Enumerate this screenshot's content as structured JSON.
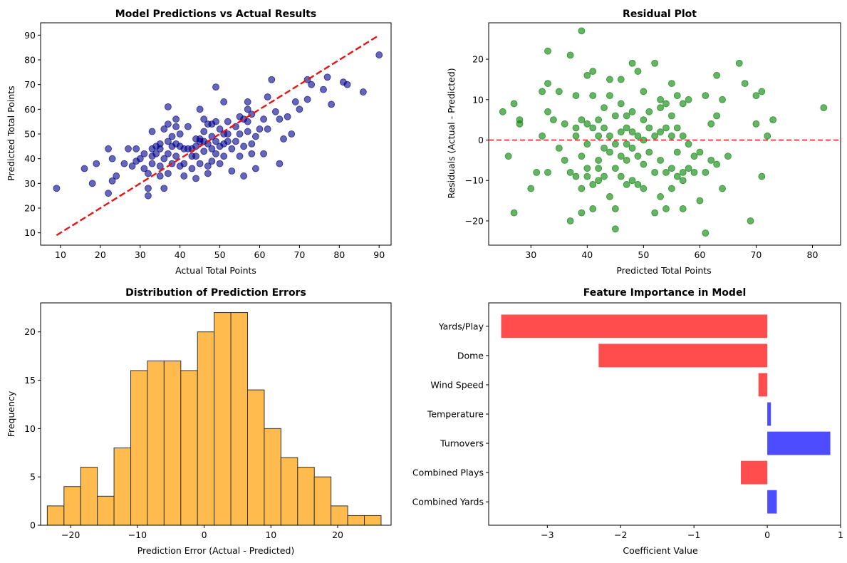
{
  "chart_data": [
    {
      "type": "scatter",
      "title": "Model Predictions vs Actual Results",
      "xlabel": "Actual Total Points",
      "ylabel": "Predicted Total Points",
      "xlim": [
        5,
        93
      ],
      "ylim": [
        5,
        95
      ],
      "xticks": [
        10,
        20,
        30,
        40,
        50,
        60,
        70,
        80,
        90
      ],
      "yticks": [
        10,
        20,
        30,
        40,
        50,
        60,
        70,
        80,
        90
      ],
      "point_color": "#00008b",
      "line_color": "#ee1111",
      "reference_line": {
        "label": "y = x",
        "from": [
          9,
          9
        ],
        "to": [
          90,
          90
        ]
      },
      "points": [
        [
          9,
          28
        ],
        [
          16,
          36
        ],
        [
          18,
          30
        ],
        [
          19,
          38
        ],
        [
          22,
          26
        ],
        [
          22,
          44
        ],
        [
          23,
          40
        ],
        [
          23,
          31
        ],
        [
          24,
          33
        ],
        [
          26,
          38
        ],
        [
          27,
          44
        ],
        [
          28,
          37
        ],
        [
          29,
          39
        ],
        [
          29,
          44
        ],
        [
          30,
          40
        ],
        [
          31,
          36
        ],
        [
          31,
          42
        ],
        [
          32,
          28
        ],
        [
          32,
          25
        ],
        [
          32,
          34
        ],
        [
          33,
          51
        ],
        [
          33,
          41
        ],
        [
          33,
          44
        ],
        [
          33,
          38
        ],
        [
          34,
          42
        ],
        [
          34,
          45
        ],
        [
          35,
          44
        ],
        [
          35,
          37
        ],
        [
          35,
          46
        ],
        [
          35,
          33
        ],
        [
          36,
          52
        ],
        [
          36,
          28
        ],
        [
          36,
          40
        ],
        [
          37,
          54
        ],
        [
          37,
          61
        ],
        [
          37,
          47
        ],
        [
          37,
          42
        ],
        [
          37,
          34
        ],
        [
          38,
          49
        ],
        [
          38,
          38
        ],
        [
          38,
          45
        ],
        [
          39,
          56
        ],
        [
          39,
          53
        ],
        [
          39,
          46
        ],
        [
          39,
          41
        ],
        [
          40,
          37
        ],
        [
          40,
          45
        ],
        [
          40,
          50
        ],
        [
          41,
          44
        ],
        [
          41,
          38
        ],
        [
          41,
          33
        ],
        [
          42,
          44
        ],
        [
          42,
          53
        ],
        [
          43,
          36
        ],
        [
          43,
          44
        ],
        [
          43,
          41
        ],
        [
          44,
          48
        ],
        [
          44,
          45
        ],
        [
          44,
          41
        ],
        [
          44,
          32
        ],
        [
          45,
          60
        ],
        [
          45,
          48
        ],
        [
          45,
          47
        ],
        [
          45,
          38
        ],
        [
          46,
          56
        ],
        [
          46,
          51
        ],
        [
          46,
          43
        ],
        [
          46,
          47
        ],
        [
          47,
          34
        ],
        [
          47,
          54
        ],
        [
          47,
          46
        ],
        [
          47,
          37
        ],
        [
          48,
          49
        ],
        [
          48,
          54
        ],
        [
          48,
          44
        ],
        [
          48,
          39
        ],
        [
          49,
          69
        ],
        [
          49,
          55
        ],
        [
          49,
          47
        ],
        [
          49,
          42
        ],
        [
          50,
          52
        ],
        [
          50,
          45
        ],
        [
          50,
          38
        ],
        [
          51,
          63
        ],
        [
          51,
          50
        ],
        [
          51,
          46
        ],
        [
          51,
          41
        ],
        [
          52,
          55
        ],
        [
          52,
          47
        ],
        [
          52,
          50
        ],
        [
          53,
          35
        ],
        [
          53,
          44
        ],
        [
          54,
          53
        ],
        [
          54,
          47
        ],
        [
          55,
          41
        ],
        [
          55,
          57
        ],
        [
          55,
          50
        ],
        [
          56,
          33
        ],
        [
          56,
          45
        ],
        [
          56,
          56
        ],
        [
          57,
          63
        ],
        [
          57,
          60
        ],
        [
          57,
          55
        ],
        [
          57,
          51
        ],
        [
          58,
          58
        ],
        [
          58,
          46
        ],
        [
          58,
          42
        ],
        [
          59,
          36
        ],
        [
          59,
          49
        ],
        [
          60,
          52
        ],
        [
          61,
          42
        ],
        [
          61,
          56
        ],
        [
          62,
          65
        ],
        [
          62,
          52
        ],
        [
          63,
          72
        ],
        [
          64,
          59
        ],
        [
          65,
          38
        ],
        [
          65,
          56
        ],
        [
          66,
          48
        ],
        [
          67,
          57
        ],
        [
          68,
          50
        ],
        [
          69,
          63
        ],
        [
          70,
          60
        ],
        [
          72,
          64
        ],
        [
          72,
          72
        ],
        [
          73,
          70
        ],
        [
          76,
          68
        ],
        [
          77,
          73
        ],
        [
          78,
          62
        ],
        [
          81,
          71
        ],
        [
          82,
          70
        ],
        [
          86,
          67
        ],
        [
          90,
          82
        ]
      ]
    },
    {
      "type": "scatter",
      "title": "Residual Plot",
      "xlabel": "Predicted Total Points",
      "ylabel": "Residuals (Actual - Predicted)",
      "xlim": [
        22.5,
        85
      ],
      "ylim": [
        -26,
        29
      ],
      "xticks": [
        30,
        40,
        50,
        60,
        70,
        80
      ],
      "yticks": [
        -20,
        -10,
        0,
        10,
        20
      ],
      "yticklabels": [
        "−20",
        "−10",
        "0",
        "10",
        "20"
      ],
      "point_color": "#008000",
      "line_color": "#ee1111",
      "reference_line": {
        "label": "y = 0",
        "y": 0
      },
      "points": [
        [
          25,
          7
        ],
        [
          26,
          -4
        ],
        [
          27,
          -18
        ],
        [
          27,
          9
        ],
        [
          28,
          5
        ],
        [
          28,
          4
        ],
        [
          30,
          -12
        ],
        [
          31,
          -8
        ],
        [
          32,
          1
        ],
        [
          32,
          12
        ],
        [
          33,
          -8
        ],
        [
          33,
          14
        ],
        [
          33,
          7
        ],
        [
          33,
          22
        ],
        [
          34,
          5
        ],
        [
          35,
          12
        ],
        [
          35,
          -2
        ],
        [
          36,
          -5
        ],
        [
          36,
          4
        ],
        [
          37,
          -20
        ],
        [
          37,
          -8
        ],
        [
          37,
          21
        ],
        [
          38,
          -9
        ],
        [
          38,
          3
        ],
        [
          38,
          1
        ],
        [
          38,
          11
        ],
        [
          39,
          -12
        ],
        [
          39,
          -4
        ],
        [
          39,
          -18
        ],
        [
          39,
          27
        ],
        [
          39,
          5
        ],
        [
          40,
          -9
        ],
        [
          40,
          -7
        ],
        [
          40,
          -1
        ],
        [
          40,
          4
        ],
        [
          40,
          16
        ],
        [
          41,
          -17
        ],
        [
          41,
          -11
        ],
        [
          41,
          3
        ],
        [
          41,
          11
        ],
        [
          41,
          17
        ],
        [
          42,
          -7
        ],
        [
          42,
          -10
        ],
        [
          42,
          -5
        ],
        [
          42,
          1
        ],
        [
          42,
          5
        ],
        [
          43,
          -2
        ],
        [
          43,
          -9
        ],
        [
          43,
          3
        ],
        [
          43,
          8
        ],
        [
          44,
          -14
        ],
        [
          44,
          -3
        ],
        [
          44,
          1
        ],
        [
          44,
          11
        ],
        [
          44,
          15
        ],
        [
          45,
          -22
        ],
        [
          45,
          -17
        ],
        [
          45,
          -7
        ],
        [
          45,
          -1
        ],
        [
          45,
          6
        ],
        [
          46,
          -9
        ],
        [
          46,
          -4
        ],
        [
          46,
          2
        ],
        [
          46,
          9
        ],
        [
          46,
          15
        ],
        [
          47,
          -11
        ],
        [
          47,
          -5
        ],
        [
          47,
          -1
        ],
        [
          47,
          3
        ],
        [
          47,
          6
        ],
        [
          48,
          -10
        ],
        [
          48,
          -2
        ],
        [
          48,
          2
        ],
        [
          48,
          7
        ],
        [
          48,
          19
        ],
        [
          49,
          -11
        ],
        [
          49,
          -4
        ],
        [
          49,
          1
        ],
        [
          49,
          17
        ],
        [
          50,
          -12
        ],
        [
          50,
          -6
        ],
        [
          50,
          0
        ],
        [
          50,
          5
        ],
        [
          50,
          12
        ],
        [
          51,
          -3
        ],
        [
          51,
          3
        ],
        [
          51,
          7
        ],
        [
          52,
          -18
        ],
        [
          52,
          -8
        ],
        [
          52,
          1
        ],
        [
          52,
          19
        ],
        [
          53,
          -14
        ],
        [
          53,
          -5
        ],
        [
          53,
          2
        ],
        [
          53,
          8
        ],
        [
          53,
          10
        ],
        [
          54,
          -17
        ],
        [
          54,
          -8
        ],
        [
          54,
          3
        ],
        [
          54,
          9
        ],
        [
          55,
          -12
        ],
        [
          55,
          -7
        ],
        [
          55,
          1
        ],
        [
          55,
          6
        ],
        [
          55,
          14
        ],
        [
          56,
          -9
        ],
        [
          56,
          -3
        ],
        [
          56,
          3
        ],
        [
          56,
          11
        ],
        [
          57,
          -17
        ],
        [
          57,
          -10
        ],
        [
          57,
          -8
        ],
        [
          57,
          1
        ],
        [
          57,
          9
        ],
        [
          58,
          -7
        ],
        [
          58,
          -1
        ],
        [
          58,
          10
        ],
        [
          59,
          -8
        ],
        [
          59,
          -4
        ],
        [
          60,
          -15
        ],
        [
          60,
          -3
        ],
        [
          61,
          -23
        ],
        [
          61,
          -8
        ],
        [
          61,
          11
        ],
        [
          62,
          -5
        ],
        [
          62,
          4
        ],
        [
          63,
          -6
        ],
        [
          63,
          16
        ],
        [
          63,
          6
        ],
        [
          64,
          -12
        ],
        [
          64,
          10
        ],
        [
          65,
          -4
        ],
        [
          67,
          19
        ],
        [
          68,
          14
        ],
        [
          69,
          -20
        ],
        [
          70,
          4
        ],
        [
          70,
          11
        ],
        [
          71,
          12
        ],
        [
          71,
          -9
        ],
        [
          72,
          1
        ],
        [
          73,
          5
        ],
        [
          82,
          8
        ]
      ]
    },
    {
      "type": "bar",
      "subtype": "histogram",
      "title": "Distribution of Prediction Errors",
      "xlabel": "Prediction Error (Actual - Predicted)",
      "ylabel": "Frequency",
      "xlim": [
        -24.5,
        28
      ],
      "ylim": [
        0,
        23
      ],
      "xticks": [
        -20,
        -10,
        0,
        10,
        20
      ],
      "xticklabels": [
        "−20",
        "−10",
        "0",
        "10",
        "20"
      ],
      "yticks": [
        0,
        5,
        10,
        15,
        20
      ],
      "bar_color": "#ffbb4d",
      "edge_color": "#333333",
      "bin_start": -23.5,
      "bin_width": 2.5,
      "values": [
        2,
        4,
        6,
        3,
        8,
        16,
        17,
        17,
        16,
        20,
        22,
        22,
        14,
        10,
        7,
        6,
        5,
        2,
        1,
        1
      ]
    },
    {
      "type": "bar",
      "orientation": "horizontal",
      "title": "Feature Importance in Model",
      "xlabel": "Coefficient Value",
      "ylabel": "",
      "xlim": [
        -3.8,
        1.0
      ],
      "xticks": [
        -3,
        -2,
        -1,
        0,
        1
      ],
      "xticklabels": [
        "−3",
        "−2",
        "−1",
        "0",
        "1"
      ],
      "negative_color": "#ff4d4d",
      "positive_color": "#4d4dff",
      "categories": [
        "Yards/Play",
        "Dome",
        "Wind Speed",
        "Temperature",
        "Turnovers",
        "Combined Plays",
        "Combined Yards"
      ],
      "values": [
        -3.63,
        -2.3,
        -0.12,
        0.05,
        0.86,
        -0.36,
        0.13
      ]
    }
  ]
}
